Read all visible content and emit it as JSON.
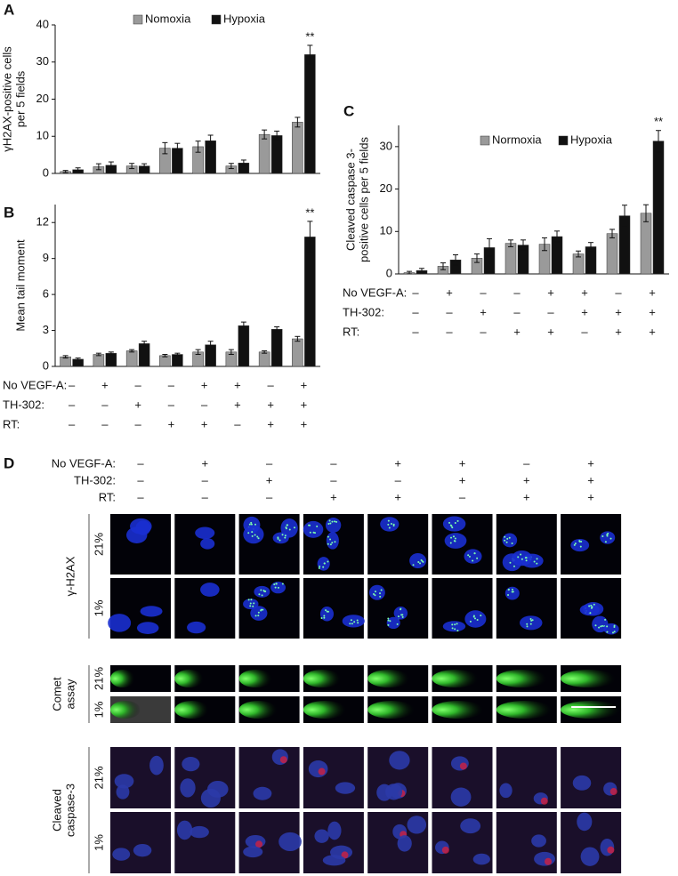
{
  "chart_data": [
    {
      "type": "bar",
      "panel": "A",
      "ylabel": [
        "γH2AX-positive cells",
        "per 5 fields"
      ],
      "categories": [
        null,
        null,
        null,
        null,
        null,
        null,
        null,
        null
      ],
      "series": [
        {
          "name": "Nomoxia",
          "color": "#9a9a9a",
          "values": [
            0.5,
            1.8,
            2,
            6.8,
            7.2,
            2,
            10.5,
            13.8
          ],
          "errors": [
            0.3,
            0.8,
            0.7,
            1.5,
            1.5,
            0.7,
            1.2,
            1.3
          ]
        },
        {
          "name": "Hypoxia",
          "color": "#111111",
          "values": [
            1,
            2.2,
            2,
            6.8,
            8.8,
            2.8,
            10.2,
            32
          ],
          "errors": [
            0.5,
            0.9,
            0.6,
            1.3,
            1.5,
            0.8,
            1.2,
            2.5
          ]
        }
      ],
      "annotation": "**",
      "ylim": [
        0,
        40
      ],
      "yticks": [
        0,
        10,
        20,
        30,
        40
      ]
    },
    {
      "type": "bar",
      "panel": "B",
      "ylabel": [
        "Mean tail moment"
      ],
      "categories": [
        null,
        null,
        null,
        null,
        null,
        null,
        null,
        null
      ],
      "series": [
        {
          "color": "#9a9a9a",
          "values": [
            0.8,
            1,
            1.3,
            0.9,
            1.2,
            1.2,
            1.2,
            2.3
          ],
          "errors": [
            0.1,
            0.1,
            0.1,
            0.1,
            0.2,
            0.2,
            0.1,
            0.2
          ]
        },
        {
          "color": "#111111",
          "values": [
            0.6,
            1.1,
            1.9,
            1,
            1.8,
            3.4,
            3.1,
            10.8
          ],
          "errors": [
            0.1,
            0.1,
            0.2,
            0.1,
            0.3,
            0.3,
            0.2,
            1.3
          ]
        }
      ],
      "annotation": "**",
      "ylim": [
        0,
        13.5
      ],
      "yticks": [
        0,
        3,
        6,
        9,
        12
      ],
      "conditions": [
        {
          "name": "No VEGF-A:",
          "values": [
            "–",
            "+",
            "–",
            "–",
            "+",
            "+",
            "–",
            "+"
          ]
        },
        {
          "name": "TH-302:",
          "values": [
            "–",
            "–",
            "+",
            "–",
            "–",
            "+",
            "+",
            "+"
          ]
        },
        {
          "name": "RT:",
          "values": [
            "–",
            "–",
            "–",
            "+",
            "+",
            "–",
            "+",
            "+"
          ]
        }
      ]
    },
    {
      "type": "bar",
      "panel": "C",
      "ylabel": [
        "Cleaved caspase 3-",
        "positive cells per 5 fields"
      ],
      "categories": [
        null,
        null,
        null,
        null,
        null,
        null,
        null,
        null
      ],
      "series": [
        {
          "name": "Normoxia",
          "color": "#9a9a9a",
          "values": [
            0.3,
            1.8,
            3.7,
            7.2,
            7,
            4.7,
            9.5,
            14.3
          ],
          "errors": [
            0.3,
            0.8,
            1,
            0.8,
            1.5,
            0.7,
            1,
            2
          ]
        },
        {
          "name": "Hypoxia",
          "color": "#111111",
          "values": [
            0.8,
            3.3,
            6.2,
            6.8,
            8.8,
            6.4,
            13.7,
            31.3
          ],
          "errors": [
            0.5,
            1.2,
            2.1,
            1.2,
            1.3,
            1,
            2.5,
            2.5
          ]
        }
      ],
      "annotation": "**",
      "ylim": [
        0,
        35
      ],
      "yticks": [
        0,
        10,
        20,
        30
      ],
      "conditions": [
        {
          "name": "No VEGF-A:",
          "values": [
            "–",
            "+",
            "–",
            "–",
            "+",
            "+",
            "–",
            "+"
          ]
        },
        {
          "name": "TH-302:",
          "values": [
            "–",
            "–",
            "+",
            "–",
            "–",
            "+",
            "+",
            "+"
          ]
        },
        {
          "name": "RT:",
          "values": [
            "–",
            "–",
            "–",
            "+",
            "+",
            "–",
            "+",
            "+"
          ]
        }
      ]
    }
  ],
  "panel_d": {
    "label": "D",
    "conditions": [
      {
        "name": "No VEGF-A:",
        "values": [
          "–",
          "+",
          "–",
          "–",
          "+",
          "+",
          "–",
          "+"
        ]
      },
      {
        "name": "TH-302:",
        "values": [
          "–",
          "–",
          "+",
          "–",
          "–",
          "+",
          "+",
          "+"
        ]
      },
      {
        "name": "RT:",
        "values": [
          "–",
          "–",
          "–",
          "+",
          "+",
          "–",
          "+",
          "+"
        ]
      }
    ],
    "groups": [
      {
        "name": [
          "γ-H2AX"
        ],
        "rows": [
          "21%",
          "1%"
        ]
      },
      {
        "name": [
          "Comet",
          "assay"
        ],
        "rows": [
          "21%",
          "1%"
        ]
      },
      {
        "name": [
          "Cleaved",
          "caspase-3"
        ],
        "rows": [
          "21%",
          "1%"
        ]
      }
    ]
  }
}
